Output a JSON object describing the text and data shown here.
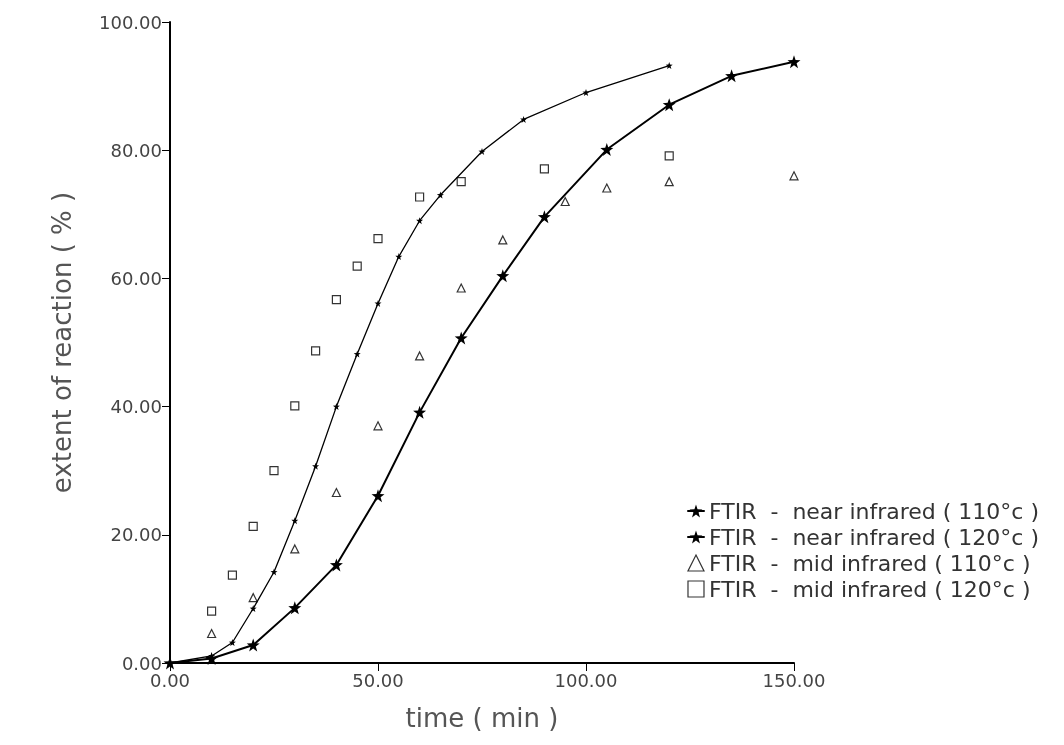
{
  "chart_data": {
    "type": "line",
    "xlabel": "time ( min )",
    "ylabel": "extent of reaction ( % )",
    "xlim": [
      0,
      150
    ],
    "xticks": [
      {
        "value": 0,
        "label": "0.00"
      },
      {
        "value": 50,
        "label": "50.00"
      },
      {
        "value": 100,
        "label": "100.00"
      },
      {
        "value": 150,
        "label": "150.00"
      }
    ],
    "ylim": [
      0,
      100
    ],
    "yticks": [
      {
        "value": 0,
        "label": "0.00"
      },
      {
        "value": 20,
        "label": "20.00"
      },
      {
        "value": 40,
        "label": "40.00"
      },
      {
        "value": 60,
        "label": "60.00"
      },
      {
        "value": 80,
        "label": "80.00"
      },
      {
        "value": 100,
        "label": "100.00"
      }
    ],
    "grid": false,
    "legend": "bottom right",
    "series": [
      {
        "name": "FTIR  -  near infrared ( 110°c )",
        "marker": "star",
        "color": "#000000",
        "x": [
          0,
          10,
          20,
          30,
          40,
          50,
          60,
          70,
          80,
          90,
          105,
          120,
          135,
          150
        ],
        "values": [
          0,
          0.7,
          2.8,
          8.6,
          15.3,
          26.1,
          39.1,
          50.7,
          60.4,
          69.6,
          80.1,
          87.1,
          91.6,
          93.8
        ]
      },
      {
        "name": "FTIR  -  near infrared ( 120°c )",
        "marker": "star",
        "color": "#000000",
        "x": [
          0,
          10,
          15,
          20,
          25,
          30,
          35,
          40,
          45,
          50,
          55,
          60,
          65,
          75,
          85,
          100,
          120
        ],
        "values": [
          0,
          1.1,
          3.2,
          8.5,
          14.2,
          22.2,
          30.7,
          40.0,
          48.2,
          56.1,
          63.4,
          69.0,
          73.0,
          79.8,
          84.8,
          89.0,
          93.2
        ]
      },
      {
        "name": "FTIR  -  mid infrared ( 110°c )",
        "type": "scatter",
        "marker": "triangle",
        "color": "#000000",
        "x": [
          10,
          20,
          30,
          40,
          50,
          60,
          70,
          80,
          95,
          105,
          120,
          150
        ],
        "values": [
          4.6,
          10.2,
          17.8,
          26.6,
          37.0,
          47.9,
          58.5,
          66.0,
          72.0,
          74.1,
          75.1,
          76.0
        ]
      },
      {
        "name": "FTIR  -  mid infrared ( 120°c )",
        "type": "scatter",
        "marker": "square",
        "color": "#000000",
        "x": [
          10,
          15,
          20,
          25,
          30,
          35,
          40,
          45,
          50,
          60,
          70,
          90,
          120
        ],
        "values": [
          8.1,
          13.7,
          21.3,
          30.0,
          40.1,
          48.7,
          56.7,
          61.9,
          66.2,
          72.7,
          75.1,
          77.1,
          79.1
        ]
      }
    ]
  }
}
